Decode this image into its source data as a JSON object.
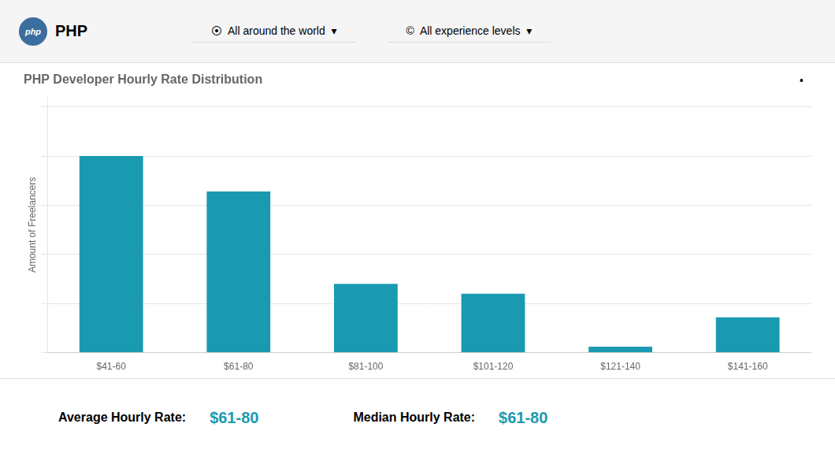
{
  "chart_data": {
    "type": "bar",
    "title": "PHP Developer Hourly Rate Distribution",
    "categories": [
      "$41-60",
      "$61-80",
      "$81-100",
      "$101-120",
      "$121-140",
      "$141-160"
    ],
    "values": [
      100,
      82,
      35,
      30,
      3,
      18
    ],
    "color": "#1a9ab0",
    "y_label": "Amount of Freelancers",
    "ylim": [
      0,
      130
    ],
    "yticks": [
      0,
      25,
      50,
      75,
      100,
      125
    ],
    "grid": true,
    "tick_labels": "x",
    "annotations": [
      "php",
      "PHP",
      "⦿  All around the world  ▾",
      "©  All experience levels  ▾",
      "•",
      "Average Hourly Rate:",
      "$61-80",
      "Median Hourly Rate:",
      "$61-80"
    ]
  }
}
